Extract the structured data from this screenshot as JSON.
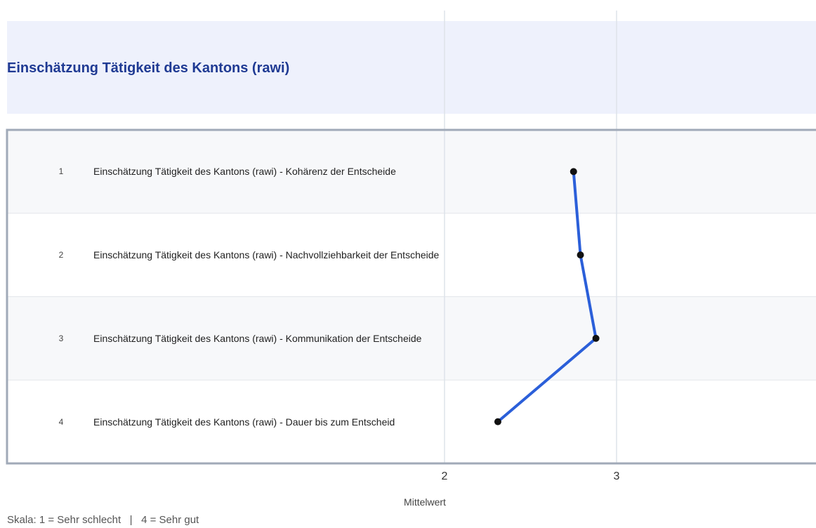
{
  "chart_data": {
    "type": "line",
    "orientation": "horizontal",
    "title": "Einschätzung Tätigkeit des Kantons (rawi)",
    "row_numbers": [
      1,
      2,
      3,
      4
    ],
    "categories": [
      "Einschätzung Tätigkeit des Kantons (rawi) - Kohärenz der Entscheide",
      "Einschätzung Tätigkeit des Kantons (rawi) - Nachvollziehbarkeit der Entscheide",
      "Einschätzung Tätigkeit des Kantons (rawi) - Kommunikation der Entscheide",
      "Einschätzung Tätigkeit des Kantons (rawi) - Dauer bis zum Entscheid"
    ],
    "series": [
      {
        "color": "#2b5fd9",
        "marker_color": "#111111",
        "values": [
          2.75,
          2.79,
          2.88,
          2.31
        ]
      }
    ],
    "xlabel": "Mittelwert",
    "xlim": [
      1,
      4
    ],
    "xticks": [
      2,
      3
    ],
    "grid": true,
    "note": "Skala: 1 = Sehr schlecht   |   4 = Sehr gut"
  }
}
